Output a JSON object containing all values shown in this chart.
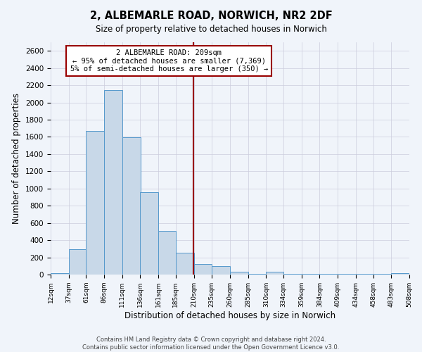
{
  "title": "2, ALBEMARLE ROAD, NORWICH, NR2 2DF",
  "subtitle": "Size of property relative to detached houses in Norwich",
  "xlabel": "Distribution of detached houses by size in Norwich",
  "ylabel": "Number of detached properties",
  "bar_color": "#c8d8e8",
  "bar_edge_color": "#5599cc",
  "background_color": "#f0f4fa",
  "grid_color": "#ccccdd",
  "property_line_x": 209,
  "property_line_color": "#990000",
  "annotation_line1": "2 ALBEMARLE ROAD: 209sqm",
  "annotation_line2": "← 95% of detached houses are smaller (7,369)",
  "annotation_line3": "5% of semi-detached houses are larger (350) →",
  "bin_edges": [
    12,
    37,
    61,
    86,
    111,
    136,
    161,
    185,
    210,
    235,
    260,
    285,
    310,
    334,
    359,
    384,
    409,
    434,
    458,
    483,
    508
  ],
  "bin_counts": [
    20,
    295,
    1670,
    2140,
    1595,
    960,
    505,
    255,
    120,
    100,
    35,
    5,
    30,
    5,
    5,
    5,
    5,
    5,
    5,
    20
  ],
  "tick_labels": [
    "12sqm",
    "37sqm",
    "61sqm",
    "86sqm",
    "111sqm",
    "136sqm",
    "161sqm",
    "185sqm",
    "210sqm",
    "235sqm",
    "260sqm",
    "285sqm",
    "310sqm",
    "334sqm",
    "359sqm",
    "384sqm",
    "409sqm",
    "434sqm",
    "458sqm",
    "483sqm",
    "508sqm"
  ],
  "ylim": [
    0,
    2700
  ],
  "yticks": [
    0,
    200,
    400,
    600,
    800,
    1000,
    1200,
    1400,
    1600,
    1800,
    2000,
    2200,
    2400,
    2600
  ],
  "footer_line1": "Contains HM Land Registry data © Crown copyright and database right 2024.",
  "footer_line2": "Contains public sector information licensed under the Open Government Licence v3.0."
}
